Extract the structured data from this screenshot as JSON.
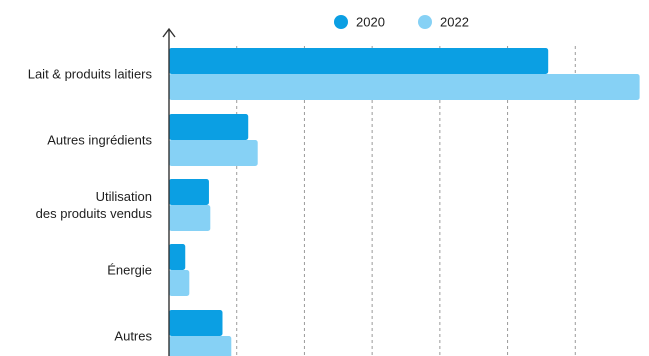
{
  "chart_data": {
    "type": "bar",
    "orientation": "horizontal",
    "categories": [
      [
        "Lait & produits laitiers"
      ],
      [
        "Autres ingrédients"
      ],
      [
        "Utilisation",
        "des produits vendus"
      ],
      [
        "Énergie"
      ],
      [
        "Autres"
      ]
    ],
    "series": [
      {
        "name": "2020",
        "color": "#0b9fe3",
        "values": [
          56.0,
          11.7,
          5.9,
          2.4,
          7.9
        ]
      },
      {
        "name": "2022",
        "color": "#86d1f5",
        "values": [
          69.5,
          13.1,
          6.1,
          3.0,
          9.2
        ]
      }
    ],
    "xlim": [
      0,
      70
    ],
    "gridlines": [
      10,
      20,
      30,
      40,
      50,
      60
    ],
    "grid": true,
    "legend_position": "top-center"
  }
}
